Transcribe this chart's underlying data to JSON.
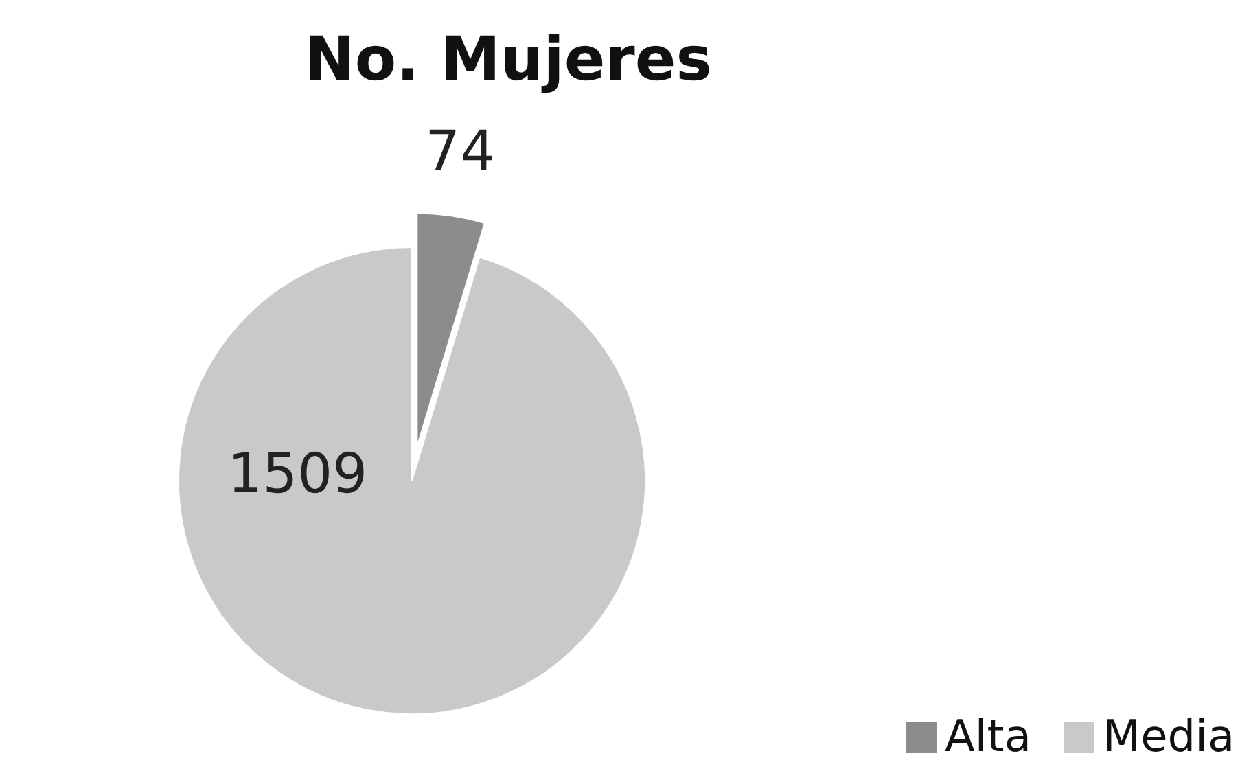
{
  "chart_data": {
    "type": "pie",
    "title": "No. Mujeres",
    "categories": [
      "Alta",
      "Media"
    ],
    "values": [
      74,
      1509
    ],
    "colors": [
      "#8c8c8c",
      "#c9c9c9"
    ],
    "data_labels": true,
    "legend": "bottom right"
  }
}
